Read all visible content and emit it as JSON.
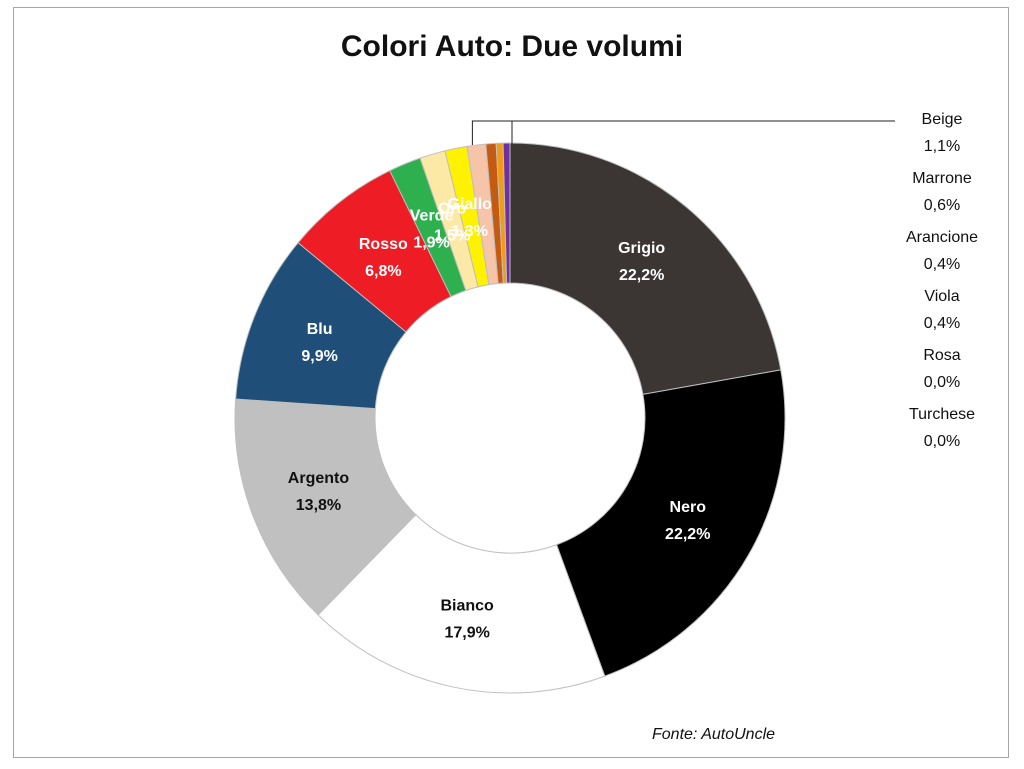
{
  "chart_data": {
    "type": "pie",
    "variant": "donut",
    "title": "Colori Auto: Due volumi",
    "source": "Fonte: AutoUncle",
    "slices": [
      {
        "label": "Grigio",
        "value": 22.2,
        "value_label": "22,2%",
        "color": "#3b3534",
        "text_color": "#ffffff",
        "label_pos": "inside"
      },
      {
        "label": "Nero",
        "value": 22.2,
        "value_label": "22,2%",
        "color": "#000000",
        "text_color": "#ffffff",
        "label_pos": "inside"
      },
      {
        "label": "Bianco",
        "value": 17.9,
        "value_label": "17,9%",
        "color": "#ffffff",
        "text_color": "#111111",
        "label_pos": "inside"
      },
      {
        "label": "Argento",
        "value": 13.8,
        "value_label": "13,8%",
        "color": "#c0c0c0",
        "text_color": "#111111",
        "label_pos": "inside"
      },
      {
        "label": "Blu",
        "value": 9.9,
        "value_label": "9,9%",
        "color": "#1f4e79",
        "text_color": "#ffffff",
        "label_pos": "inside"
      },
      {
        "label": "Rosso",
        "value": 6.8,
        "value_label": "6,8%",
        "color": "#ee1c24",
        "text_color": "#ffffff",
        "label_pos": "inside"
      },
      {
        "label": "Verde",
        "value": 1.9,
        "value_label": "1,9%",
        "color": "#2eb04f",
        "text_color": "#ffffff",
        "label_pos": "inside"
      },
      {
        "label": "Oro",
        "value": 1.5,
        "value_label": "1,5%",
        "color": "#fde9a6",
        "text_color": "#ffffff",
        "label_pos": "inside"
      },
      {
        "label": "Giallo",
        "value": 1.3,
        "value_label": "1,3%",
        "color": "#fff200",
        "text_color": "#ffffff",
        "label_pos": "inside"
      },
      {
        "label": "Beige",
        "value": 1.1,
        "value_label": "1,1%",
        "color": "#f6c4a8",
        "text_color": "#111111",
        "label_pos": "side"
      },
      {
        "label": "Marrone",
        "value": 0.6,
        "value_label": "0,6%",
        "color": "#c55a11",
        "text_color": "#111111",
        "label_pos": "side"
      },
      {
        "label": "Arancione",
        "value": 0.4,
        "value_label": "0,4%",
        "color": "#f39c12",
        "text_color": "#111111",
        "label_pos": "side"
      },
      {
        "label": "Viola",
        "value": 0.4,
        "value_label": "0,4%",
        "color": "#7030a0",
        "text_color": "#111111",
        "label_pos": "side"
      },
      {
        "label": "Rosa",
        "value": 0.0,
        "value_label": "0,0%",
        "color": "#ff99cc",
        "text_color": "#111111",
        "label_pos": "side"
      },
      {
        "label": "Turchese",
        "value": 0.0,
        "value_label": "0,0%",
        "color": "#00b0b0",
        "text_color": "#111111",
        "label_pos": "side"
      }
    ]
  }
}
